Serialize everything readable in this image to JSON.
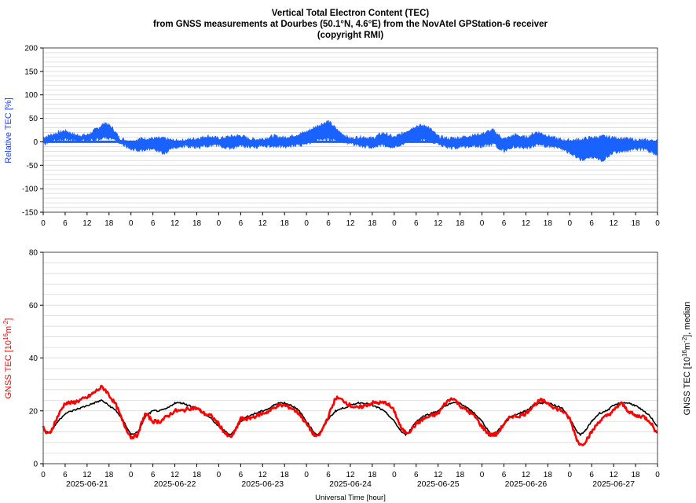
{
  "header": {
    "title_line1": "Vertical Total Electron Content (TEC)",
    "title_line2": "from GNSS measurements at Dourbes (50.1°N, 4.6°E) from the NovAtel GPStation-6 receiver",
    "title_line3": "(copyright RMI)"
  },
  "colors": {
    "relative": "#1a62ff",
    "gnss": "#ff0000",
    "median": "#000000",
    "grid": "#d3d3d3",
    "frame": "#444444"
  },
  "axes_text": {
    "top_ylabel": "Relative TEC [%]",
    "bottom_ylabel": "GNSS TEC [10^16 m^-2]",
    "right_ylabel": "GNSS TEC [10^16 m^-2], median",
    "xlabel": "Universal Time [hour]",
    "date_labels": [
      "2025-06-21",
      "2025-06-22",
      "2025-06-23",
      "2025-06-24",
      "2025-06-25",
      "2025-06-26",
      "2025-06-27"
    ],
    "hour_ticks": [
      "0",
      "6",
      "12",
      "18"
    ]
  },
  "chart_data": [
    {
      "type": "area",
      "title": "",
      "ylabel": "Relative TEC [%]",
      "xlabel": "",
      "ylim": [
        -150,
        200
      ],
      "yticks": [
        -150,
        -100,
        -50,
        0,
        50,
        100,
        150,
        200
      ],
      "xlim_hours": [
        0,
        168
      ],
      "grid": true,
      "series": [
        {
          "name": "Relative TEC",
          "note_x": "hours since 2025-06-21 00:00 UT",
          "x": [
            0,
            3,
            6,
            9,
            12,
            15,
            17,
            19,
            21,
            24,
            27,
            30,
            33,
            36,
            39,
            42,
            45,
            48,
            51,
            54,
            57,
            60,
            63,
            66,
            69,
            72,
            75,
            78,
            81,
            84,
            87,
            90,
            93,
            96,
            99,
            102,
            105,
            108,
            111,
            114,
            117,
            120,
            123,
            126,
            129,
            132,
            135,
            138,
            141,
            144,
            147,
            150,
            153,
            156,
            159,
            162,
            165,
            168
          ],
          "upper": [
            10,
            18,
            25,
            15,
            15,
            30,
            42,
            30,
            8,
            2,
            8,
            8,
            8,
            3,
            5,
            8,
            13,
            8,
            12,
            14,
            6,
            7,
            13,
            10,
            15,
            22,
            35,
            45,
            22,
            8,
            12,
            8,
            20,
            10,
            22,
            35,
            35,
            12,
            8,
            10,
            14,
            18,
            26,
            6,
            16,
            10,
            22,
            14,
            6,
            4,
            6,
            10,
            12,
            10,
            8,
            5,
            4,
            3
          ],
          "lower": [
            -5,
            2,
            4,
            2,
            2,
            5,
            8,
            4,
            -4,
            -15,
            -20,
            -15,
            -25,
            -14,
            -10,
            -12,
            -10,
            -8,
            -16,
            -10,
            -12,
            -10,
            -10,
            -12,
            -8,
            -6,
            2,
            5,
            2,
            -4,
            -10,
            -12,
            -8,
            -14,
            -2,
            2,
            2,
            -4,
            -14,
            -12,
            -10,
            -10,
            -6,
            -20,
            -10,
            -14,
            -8,
            -10,
            -14,
            -25,
            -38,
            -35,
            -40,
            -22,
            -22,
            -16,
            -18,
            -28
          ]
        }
      ]
    },
    {
      "type": "line",
      "title": "",
      "ylabel": "GNSS TEC [10^16 m^-2]",
      "xlabel": "Universal Time [hour]",
      "ylim": [
        0,
        80
      ],
      "yticks": [
        0,
        20,
        40,
        60,
        80
      ],
      "xlim_hours": [
        0,
        168
      ],
      "grid": true,
      "series": [
        {
          "name": "GNSS TEC",
          "x": [
            0,
            1,
            2,
            4,
            6,
            8,
            10,
            12,
            14,
            16,
            17,
            18,
            20,
            22,
            24,
            26,
            27,
            28,
            30,
            32,
            34,
            36,
            38,
            40,
            42,
            44,
            46,
            48,
            50,
            51,
            52,
            54,
            56,
            58,
            60,
            62,
            64,
            66,
            68,
            70,
            72,
            74,
            75,
            76,
            78,
            80,
            82,
            84,
            86,
            88,
            90,
            92,
            94,
            96,
            98,
            99,
            100,
            102,
            104,
            106,
            108,
            110,
            112,
            114,
            116,
            118,
            120,
            122,
            123,
            124,
            126,
            128,
            130,
            132,
            134,
            136,
            138,
            140,
            142,
            144,
            146,
            147,
            148,
            150,
            152,
            154,
            156,
            158,
            160,
            162,
            164,
            166,
            168
          ],
          "y": [
            14,
            11,
            12,
            18,
            23,
            23,
            24,
            25,
            27,
            29,
            28,
            26,
            22,
            15,
            10,
            11,
            16,
            19,
            16,
            16,
            18,
            20,
            20,
            21,
            21,
            19,
            18,
            15,
            11,
            10,
            11,
            17,
            17,
            18,
            19,
            20,
            22,
            22,
            21,
            19,
            15,
            11,
            10,
            12,
            18,
            25,
            24,
            22,
            21,
            22,
            23,
            23,
            23,
            20,
            13,
            12,
            12,
            15,
            17,
            18,
            19,
            23,
            25,
            22,
            20,
            18,
            14,
            11,
            11,
            11,
            15,
            18,
            18,
            19,
            22,
            24,
            23,
            21,
            20,
            17,
            9,
            7,
            8,
            12,
            16,
            18,
            20,
            23,
            20,
            18,
            18,
            16,
            11
          ]
        },
        {
          "name": "median",
          "x": [
            0,
            1,
            2,
            4,
            6,
            8,
            10,
            12,
            14,
            16,
            17,
            18,
            20,
            22,
            24,
            26,
            27,
            28,
            30,
            32,
            34,
            36,
            38,
            40,
            42,
            44,
            46,
            48,
            50,
            51,
            52,
            54,
            56,
            58,
            60,
            62,
            64,
            66,
            68,
            70,
            72,
            74,
            75,
            76,
            78,
            80,
            82,
            84,
            86,
            88,
            90,
            92,
            94,
            96,
            98,
            99,
            100,
            102,
            104,
            106,
            108,
            110,
            112,
            114,
            116,
            118,
            120,
            122,
            123,
            124,
            126,
            128,
            130,
            132,
            134,
            136,
            138,
            140,
            142,
            144,
            146,
            147,
            148,
            150,
            152,
            154,
            156,
            158,
            160,
            162,
            164,
            166,
            168
          ],
          "y": [
            13,
            12,
            12,
            16,
            19,
            20,
            21,
            22,
            23,
            24,
            23,
            22,
            20,
            16,
            11,
            12,
            15,
            18,
            20,
            20,
            21,
            23,
            23,
            22,
            21,
            19,
            17,
            14,
            12,
            11,
            12,
            16,
            18,
            19,
            20,
            21,
            23,
            23,
            22,
            20,
            16,
            12,
            11,
            12,
            17,
            20,
            21,
            22,
            23,
            23,
            22,
            21,
            19,
            16,
            12,
            11,
            12,
            16,
            18,
            19,
            20,
            22,
            23,
            23,
            21,
            19,
            16,
            12,
            11,
            12,
            15,
            18,
            19,
            20,
            22,
            23,
            23,
            22,
            21,
            17,
            12,
            11,
            12,
            16,
            19,
            20,
            22,
            23,
            23,
            22,
            20,
            18,
            14
          ]
        }
      ]
    }
  ]
}
